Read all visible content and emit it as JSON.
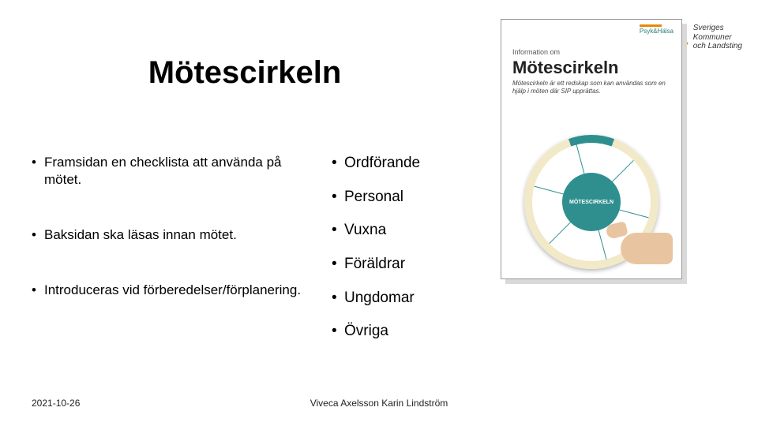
{
  "title": "Mötescirkeln",
  "logo": {
    "line1": "Sveriges",
    "line2": "Kommuner",
    "line3": "och Landsting",
    "color": "#e68a00"
  },
  "left_bullets": [
    "Framsidan en checklista att använda på mötet.",
    "Baksidan ska läsas innan mötet.",
    "Introduceras vid förberedelser/förplanering."
  ],
  "right_bullets": [
    "Ordförande",
    "Personal",
    "Vuxna",
    "Föräldrar",
    "Ungdomar",
    "Övriga"
  ],
  "footer": {
    "date": "2021-10-26",
    "author": "Viveca Axelsson Karin Lindström"
  },
  "pamphlet": {
    "eyebrow": "Information om",
    "title": "Mötescirkeln",
    "subtitle": "Mötescirkeln är ett redskap som kan användas som en hjälp i möten där SIP upprättas.",
    "wheel_core": "MÖTESCIRKELN",
    "colors": {
      "ring_accent": "#2f8f8f",
      "ring_fill": "#f2e9c8",
      "core": "#2f8f8f"
    }
  }
}
